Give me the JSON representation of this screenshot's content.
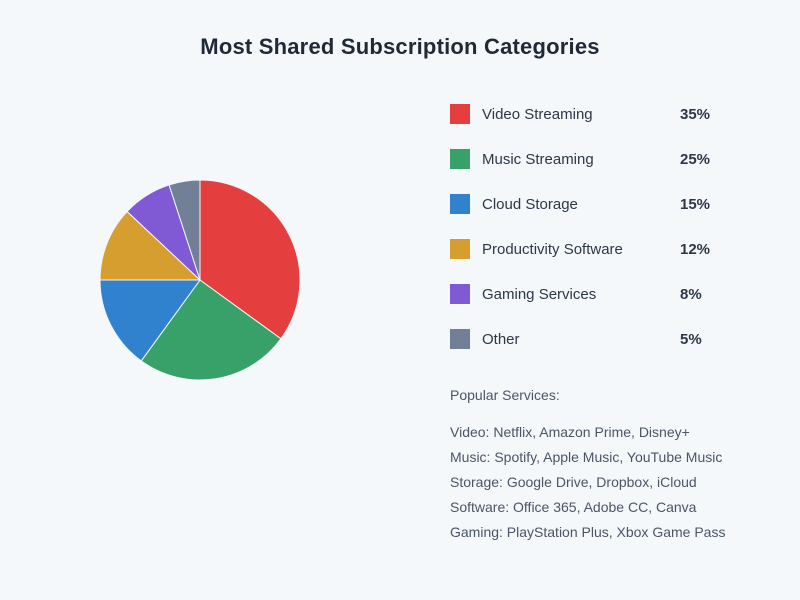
{
  "page": {
    "title": "Most Shared Subscription Categories"
  },
  "chart_data": {
    "type": "pie",
    "title": "Most Shared Subscription Categories",
    "start_angle_deg": 0,
    "direction": "clockwise",
    "legend_position": "right",
    "total": 100,
    "segments": [
      {
        "label": "Video Streaming",
        "value": 35,
        "percent_label": "35%",
        "color": "#e53e3e"
      },
      {
        "label": "Music Streaming",
        "value": 25,
        "percent_label": "25%",
        "color": "#38a169"
      },
      {
        "label": "Cloud Storage",
        "value": 15,
        "percent_label": "15%",
        "color": "#3182ce"
      },
      {
        "label": "Productivity Software",
        "value": 12,
        "percent_label": "12%",
        "color": "#d69e2e"
      },
      {
        "label": "Gaming Services",
        "value": 8,
        "percent_label": "8%",
        "color": "#805ad5"
      },
      {
        "label": "Other",
        "value": 5,
        "percent_label": "5%",
        "color": "#718096"
      }
    ]
  },
  "notes": {
    "heading": "Popular Services:",
    "lines": [
      "Video: Netflix, Amazon Prime, Disney+",
      "Music: Spotify, Apple Music, YouTube Music",
      "Storage: Google Drive, Dropbox, iCloud",
      "Software: Office 365, Adobe CC, Canva",
      "Gaming: PlayStation Plus, Xbox Game Pass"
    ]
  },
  "colors": {
    "background": "#f4f8fb",
    "title_text": "#1f2937",
    "label_text": "#2d3748",
    "note_text": "#4a5568",
    "slice_stroke": "#f4f8fb"
  }
}
